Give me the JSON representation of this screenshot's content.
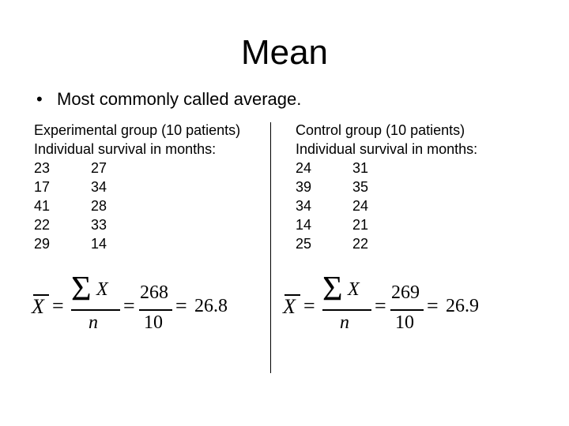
{
  "title": "Mean",
  "bullet": {
    "marker": "•",
    "text": "Most commonly called average."
  },
  "experimental": {
    "heading": "Experimental group (10 patients)",
    "subheading": "Individual survival in months:",
    "rows": [
      [
        "23",
        "27"
      ],
      [
        "17",
        "34"
      ],
      [
        "41",
        "28"
      ],
      [
        "22",
        "33"
      ],
      [
        "29",
        "14"
      ]
    ],
    "formula": {
      "lhs": "X",
      "numerator_symbol": "ΣX",
      "denominator_symbol": "n",
      "sum": "268",
      "count": "10",
      "result": "26.8"
    }
  },
  "control": {
    "heading": "Control group (10 patients)",
    "subheading": "Individual survival in months:",
    "rows": [
      [
        "24",
        "31"
      ],
      [
        "39",
        "35"
      ],
      [
        "34",
        "24"
      ],
      [
        "14",
        "21"
      ],
      [
        "25",
        "22"
      ]
    ],
    "formula": {
      "lhs": "X",
      "numerator_symbol": "ΣX",
      "denominator_symbol": "n",
      "sum": "269",
      "count": "10",
      "result": "26.9"
    }
  }
}
